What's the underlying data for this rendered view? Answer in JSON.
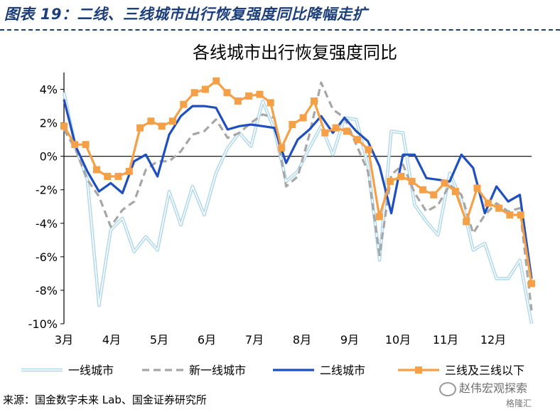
{
  "figure": {
    "label": "图表 19：二线、三线城市出行恢复强度同比降幅走扩",
    "source": "来源：国金数字未来 Lab、国金证券研究所",
    "watermark": "赵伟宏观探索",
    "logo_text": "格隆汇"
  },
  "chart_data": {
    "type": "line",
    "title": "各线城市出行恢复强度同比",
    "xlabel": "",
    "ylabel": "",
    "x_tick_labels": [
      "3月",
      "4月",
      "5月",
      "6月",
      "7月",
      "8月",
      "9月",
      "10月",
      "11月",
      "12月"
    ],
    "y_tick_labels": [
      "4%",
      "2%",
      "0%",
      "-2%",
      "-4%",
      "-6%",
      "-8%",
      "-10%"
    ],
    "y_ticks": [
      4,
      2,
      0,
      -2,
      -4,
      -6,
      -8,
      -10
    ],
    "ylim": [
      -10,
      5
    ],
    "grid": false,
    "legend_position": "bottom",
    "series": [
      {
        "name": "一线城市",
        "color": "#aed7ec",
        "style": "double-light",
        "values": [
          3.8,
          0.5,
          -1.4,
          -8.9,
          -4.4,
          -3.7,
          -5.7,
          -4.8,
          -5.6,
          -2.1,
          -4.1,
          -1.8,
          -3.5,
          -1.0,
          0.5,
          1.4,
          0.6,
          3.3,
          1.6,
          -1.5,
          -0.9,
          0.5,
          1.8,
          0.1,
          2.3,
          2.2,
          -0.5,
          -6.2,
          1.5,
          1.4,
          -2.9,
          -3.9,
          -4.7,
          -1.0,
          -2.6,
          -5.6,
          -5.2,
          -7.3,
          -7.3,
          -6.2,
          -10.0
        ]
      },
      {
        "name": "新一线城市",
        "color": "#a6a6a6",
        "style": "dashed",
        "values": [
          1.6,
          0.4,
          -1.4,
          -2.4,
          -4.2,
          -3.2,
          -2.7,
          -0.8,
          -0.3,
          -0.3,
          0.3,
          1.3,
          1.5,
          2.2,
          1.1,
          1.4,
          2.0,
          2.5,
          2.3,
          -1.8,
          -1.2,
          1.3,
          4.4,
          2.8,
          2.3,
          0.7,
          -0.9,
          -5.9,
          -1.1,
          -0.5,
          -2.2,
          -3.3,
          -2.9,
          -1.7,
          -2.3,
          -4.6,
          -3.5,
          -2.8,
          -3.3,
          -3.1,
          -9.2
        ]
      },
      {
        "name": "二线城市",
        "color": "#1f4fbe",
        "style": "solid",
        "values": [
          3.4,
          0.6,
          -0.9,
          -2.1,
          -1.6,
          -2.2,
          -0.3,
          0.1,
          -1.2,
          1.3,
          2.4,
          3.0,
          3.0,
          2.9,
          1.6,
          1.8,
          1.9,
          1.8,
          1.7,
          -0.4,
          1.0,
          1.6,
          2.4,
          1.4,
          2.3,
          1.5,
          0.9,
          -0.6,
          -3.4,
          0.1,
          0.1,
          -1.3,
          -1.4,
          -1.5,
          0.1,
          -0.7,
          -3.4,
          -1.8,
          -2.7,
          -2.3,
          -7.3
        ]
      },
      {
        "name": "三线及三线以下",
        "color": "#f5a047",
        "style": "solid-square-markers",
        "values": [
          1.8,
          0.7,
          0.7,
          -0.8,
          -1.2,
          -1.2,
          -0.9,
          1.7,
          2.1,
          1.8,
          2.1,
          3.1,
          3.8,
          4.0,
          4.5,
          3.8,
          3.3,
          3.6,
          3.7,
          3.2,
          0.5,
          1.9,
          2.3,
          3.3,
          1.4,
          1.7,
          1.5,
          1.0,
          0.4,
          -3.6,
          -1.5,
          -1.2,
          -1.5,
          -2.0,
          -2.3,
          -1.6,
          -2.1,
          -3.9,
          -1.9,
          -2.8,
          -3.1,
          -3.5,
          -3.5,
          -7.6
        ]
      }
    ]
  }
}
